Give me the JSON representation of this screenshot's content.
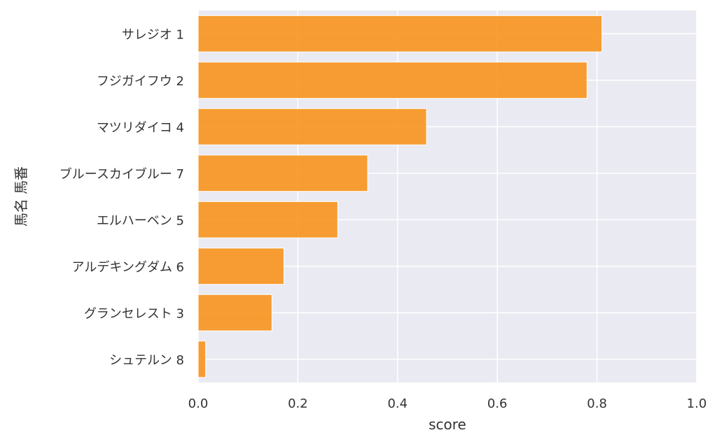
{
  "chart_data": {
    "type": "bar",
    "orientation": "horizontal",
    "categories": [
      "サレジオ 1",
      "フジガイフウ 2",
      "マツリダイコ 4",
      "ブルースカイブルー 7",
      "エルハーベン 5",
      "アルデキングダム 6",
      "グランセレスト 3",
      "シュテルン 8"
    ],
    "values": [
      0.81,
      0.78,
      0.458,
      0.34,
      0.28,
      0.172,
      0.148,
      0.015
    ],
    "xlabel": "score",
    "ylabel": "馬名 馬番",
    "xlim": [
      0.0,
      1.0
    ],
    "xticks": [
      "0.0",
      "0.2",
      "0.4",
      "0.6",
      "0.8",
      "1.0"
    ],
    "grid": true,
    "bar_color": "#F7941D",
    "background_color": "#EAEAF2"
  }
}
